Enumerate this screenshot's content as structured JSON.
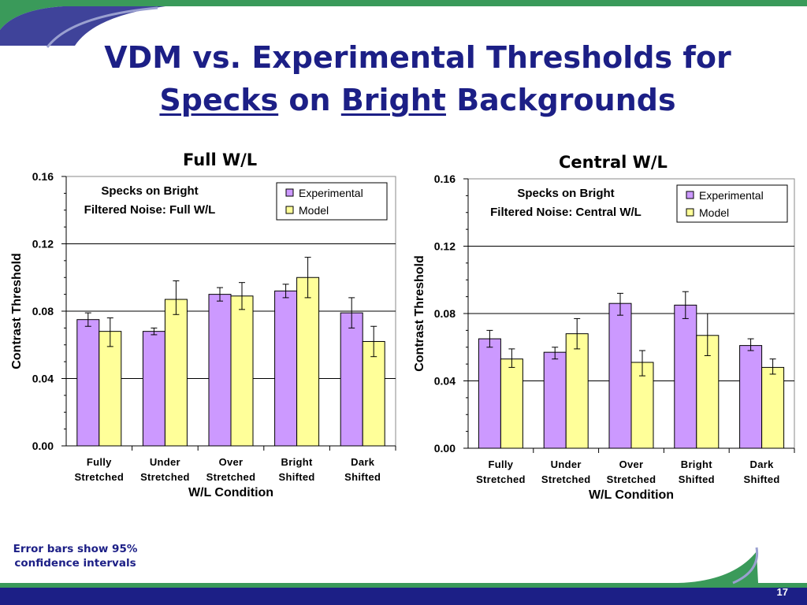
{
  "slide": {
    "title_prefix": "VDM vs. Experimental Thresholds for",
    "title_word1": "Specks",
    "title_mid": " on ",
    "title_word2": "Bright",
    "title_suffix": " Backgrounds",
    "footnote_line1": "Error bars show 95%",
    "footnote_line2": "confidence intervals",
    "page_number": "17"
  },
  "colors": {
    "title": "#1c1f86",
    "experimental": "#cc99ff",
    "model": "#ffff99",
    "banner_green": "#3a9a5a",
    "banner_blue": "#1c1f86"
  },
  "chart_data": [
    {
      "type": "bar",
      "title": "Full W/L",
      "annotation": [
        "Specks on Bright",
        "Filtered Noise: Full W/L"
      ],
      "xlabel": "W/L Condition",
      "ylabel": "Contrast Threshold",
      "ylim": [
        0,
        0.16
      ],
      "yticks": [
        "0.00",
        "0.04",
        "0.08",
        "0.12",
        "0.16"
      ],
      "grid": true,
      "legend_position": "top-right",
      "categories": [
        [
          "Fully",
          "Stretched"
        ],
        [
          "Under",
          "Stretched"
        ],
        [
          "Over",
          "Stretched"
        ],
        [
          "Bright",
          "Shifted"
        ],
        [
          "Dark",
          "Shifted"
        ]
      ],
      "series": [
        {
          "name": "Experimental",
          "values": [
            0.075,
            0.068,
            0.09,
            0.092,
            0.079
          ],
          "err_low": [
            0.071,
            0.066,
            0.086,
            0.088,
            0.07
          ],
          "err_high": [
            0.079,
            0.07,
            0.094,
            0.096,
            0.088
          ]
        },
        {
          "name": "Model",
          "values": [
            0.068,
            0.087,
            0.089,
            0.1,
            0.062
          ],
          "err_low": [
            0.059,
            0.078,
            0.081,
            0.088,
            0.053
          ],
          "err_high": [
            0.076,
            0.098,
            0.097,
            0.112,
            0.071
          ]
        }
      ]
    },
    {
      "type": "bar",
      "title": "Central W/L",
      "annotation": [
        "Specks on Bright",
        "Filtered Noise: Central W/L"
      ],
      "xlabel": "W/L Condition",
      "ylabel": "Contrast Threshold",
      "ylim": [
        0,
        0.16
      ],
      "yticks": [
        "0.00",
        "0.04",
        "0.08",
        "0.12",
        "0.16"
      ],
      "grid": true,
      "legend_position": "top-right",
      "categories": [
        [
          "Fully",
          "Stretched"
        ],
        [
          "Under",
          "Stretched"
        ],
        [
          "Over",
          "Stretched"
        ],
        [
          "Bright",
          "Shifted"
        ],
        [
          "Dark",
          "Shifted"
        ]
      ],
      "series": [
        {
          "name": "Experimental",
          "values": [
            0.065,
            0.057,
            0.086,
            0.085,
            0.061
          ],
          "err_low": [
            0.06,
            0.053,
            0.079,
            0.077,
            0.058
          ],
          "err_high": [
            0.07,
            0.06,
            0.092,
            0.093,
            0.065
          ]
        },
        {
          "name": "Model",
          "values": [
            0.053,
            0.068,
            0.051,
            0.067,
            0.048
          ],
          "err_low": [
            0.048,
            0.059,
            0.043,
            0.055,
            0.044
          ],
          "err_high": [
            0.059,
            0.077,
            0.058,
            0.08,
            0.053
          ]
        }
      ]
    }
  ]
}
